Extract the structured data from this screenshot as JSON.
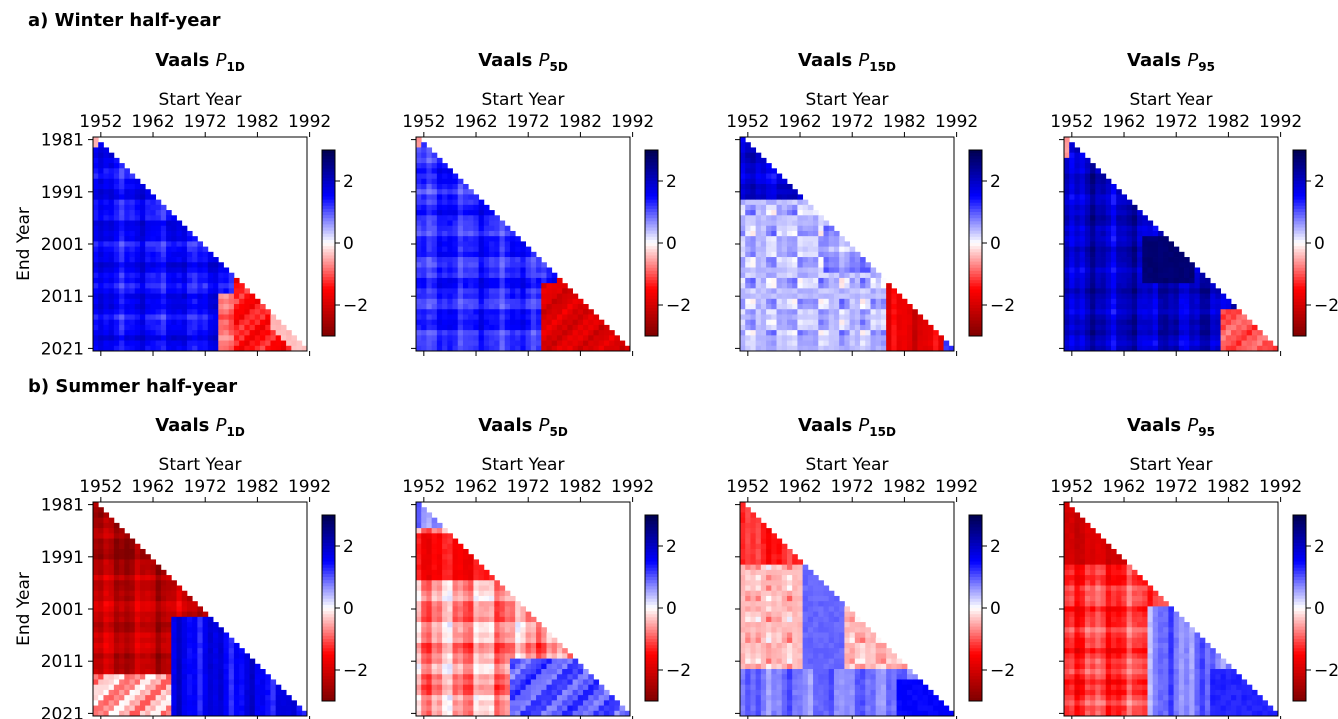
{
  "rows": [
    {
      "label": "a) Winter half-year",
      "panels": [
        {
          "station": "Vaals",
          "var_base": "P",
          "var_sub": "1D"
        },
        {
          "station": "Vaals",
          "var_base": "P",
          "var_sub": "5D"
        },
        {
          "station": "Vaals",
          "var_base": "P",
          "var_sub": "15D"
        },
        {
          "station": "Vaals",
          "var_base": "P",
          "var_sub": "95"
        }
      ]
    },
    {
      "label": "b) Summer half-year",
      "panels": [
        {
          "station": "Vaals",
          "var_base": "P",
          "var_sub": "1D"
        },
        {
          "station": "Vaals",
          "var_base": "P",
          "var_sub": "5D"
        },
        {
          "station": "Vaals",
          "var_base": "P",
          "var_sub": "15D"
        },
        {
          "station": "Vaals",
          "var_base": "P",
          "var_sub": "95"
        }
      ]
    }
  ],
  "chart_data": {
    "type": "heatmap",
    "xlabel": "Start Year",
    "ylabel": "End Year",
    "x_ticks": [
      "1952",
      "1962",
      "1972",
      "1982",
      "1992"
    ],
    "y_ticks": [
      "1981",
      "1991",
      "2001",
      "2011",
      "2021"
    ],
    "x_range": [
      1951,
      1991
    ],
    "y_range": [
      1981,
      2021
    ],
    "colormap": "seismic_r",
    "colorbar": {
      "range": [
        -3,
        3
      ],
      "ticks": [
        2,
        0,
        -2
      ],
      "tick_labels": [
        "2",
        "0",
        "−2"
      ]
    },
    "colors": {
      "positive": "#0000ff",
      "zero": "#ffffff",
      "negative": "#ff0000",
      "dark_positive": "#00004c",
      "dark_negative": "#7f0000"
    },
    "panels": [
      {
        "row": 0,
        "col": 0,
        "approx_values": {
          "long_windows": 1.5,
          "recent_short_windows": -1.5,
          "diag_start_1951": -0.3
        }
      },
      {
        "row": 0,
        "col": 1,
        "approx_values": {
          "long_windows": 1.4,
          "recent_short_windows": -2.0,
          "diag_start_1951": -0.5
        }
      },
      {
        "row": 0,
        "col": 2,
        "approx_values": {
          "long_windows": 1.0,
          "recent_short_windows": -1.8,
          "diag_start_1951": 0.5
        }
      },
      {
        "row": 0,
        "col": 3,
        "approx_values": {
          "long_windows": 2.2,
          "recent_short_windows": -1.0,
          "diag_start_1951": -0.5
        }
      },
      {
        "row": 1,
        "col": 0,
        "approx_values": {
          "long_windows": -2.2,
          "recent_short_windows": 1.8,
          "diag_start_1951": -0.8
        }
      },
      {
        "row": 1,
        "col": 1,
        "approx_values": {
          "long_windows": -0.6,
          "recent_short_windows": 1.2,
          "diag_start_1951": -0.3
        }
      },
      {
        "row": 1,
        "col": 2,
        "approx_values": {
          "long_windows": -0.8,
          "recent_short_windows": 1.0,
          "diag_start_1951": -0.5
        }
      },
      {
        "row": 1,
        "col": 3,
        "approx_values": {
          "long_windows": -1.5,
          "recent_short_windows": 1.2,
          "diag_start_1951": -0.5
        }
      }
    ]
  }
}
